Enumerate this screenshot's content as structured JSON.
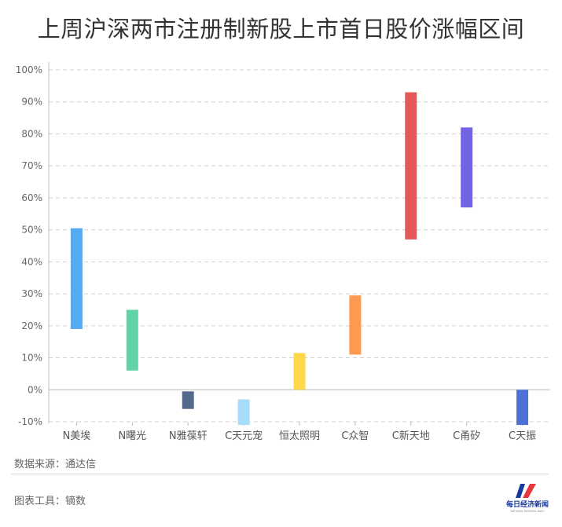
{
  "chart_data": {
    "type": "floating-bar",
    "title": "上周沪深两市注册制新股上市首日股价涨幅区间",
    "ylim": [
      -10,
      100
    ],
    "yticks": [
      -10,
      0,
      10,
      20,
      30,
      40,
      50,
      60,
      70,
      80,
      90,
      100
    ],
    "ytick_labels": [
      "-10%",
      "0%",
      "10%",
      "20%",
      "30%",
      "40%",
      "50%",
      "60%",
      "70%",
      "80%",
      "90%",
      "100%"
    ],
    "grid": true,
    "categories": [
      "N美埃",
      "N曙光",
      "N雅葆轩",
      "C天元宠",
      "恒太照明",
      "C众智",
      "C新天地",
      "C甬矽",
      "C天振"
    ],
    "ranges": [
      [
        19,
        50.5
      ],
      [
        6,
        25
      ],
      [
        -6,
        -0.5
      ],
      [
        -11,
        -3
      ],
      [
        0,
        11.5
      ],
      [
        11,
        29.5
      ],
      [
        47,
        93
      ],
      [
        57,
        82
      ],
      [
        -11,
        0
      ]
    ],
    "colors": [
      "#55aaf0",
      "#60d4a8",
      "#546a8c",
      "#a8dcfb",
      "#fcd84a",
      "#fd9950",
      "#e55858",
      "#7263e2",
      "#4c72d8"
    ]
  },
  "footer": {
    "source": "数据来源：通达信",
    "tool": "图表工具：镝数"
  },
  "logo": {
    "text": "每日经济新闻",
    "subtext": "NATIONAL BUSINESS DAILY",
    "colors": [
      "#1a3a9c",
      "#e8383d"
    ]
  }
}
